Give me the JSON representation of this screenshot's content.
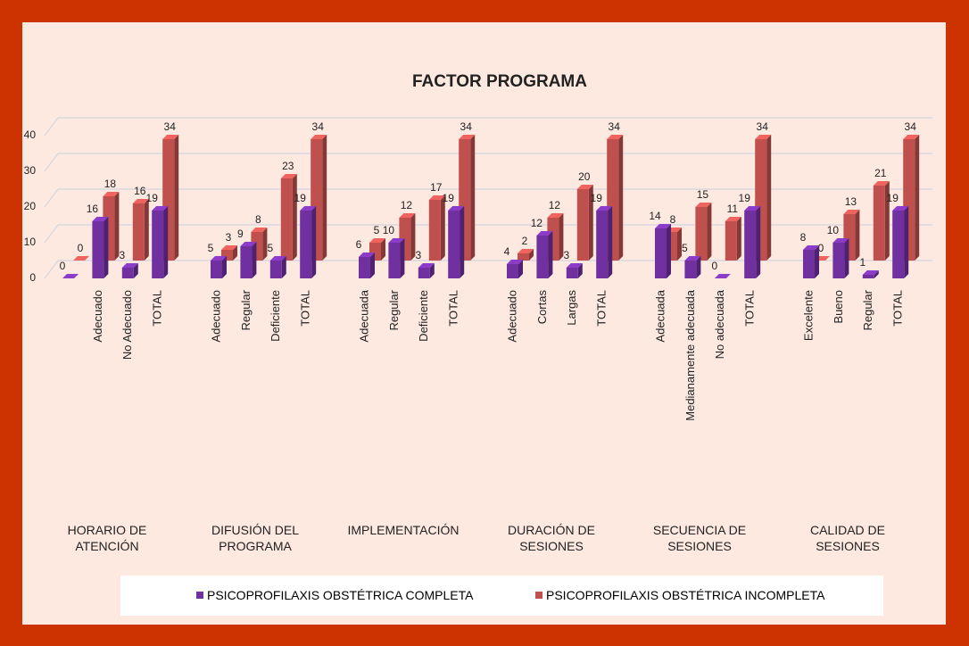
{
  "chart_data": {
    "type": "bar3d",
    "title": "FACTOR PROGRAMA",
    "categories": [
      null,
      "Adecuado",
      "No Adecuado",
      "TOTAL",
      "Adecuado",
      "Regular",
      "Deficiente",
      "TOTAL",
      "Adecuada",
      "Regular",
      "Deficiente",
      "TOTAL",
      "Adecuado",
      "Cortas",
      "Largas",
      "TOTAL",
      "Adecuada",
      "Medianamente adecuada",
      "No adecuada",
      "TOTAL",
      "Excelente",
      "Bueno",
      "Regular",
      "TOTAL"
    ],
    "groups": [
      "HORARIO DE ATENCIÓN",
      "DIFUSIÓN DEL PROGRAMA",
      "IMPLEMENTACIÓN",
      "DURACIÓN DE SESIONES",
      "SECUENCIA DE SESIONES",
      "CALIDAD DE SESIONES"
    ],
    "series": [
      {
        "name": "PSICOPROFILAXIS OBSTÉTRICA COMPLETA",
        "color": "#7030a0",
        "values": [
          0,
          16,
          3,
          19,
          5,
          9,
          5,
          19,
          6,
          10,
          3,
          19,
          4,
          12,
          3,
          19,
          14,
          5,
          0,
          19,
          8,
          10,
          1,
          19
        ]
      },
      {
        "name": "PSICOPROFILAXIS OBSTÉTRICA INCOMPLETA",
        "color": "#c0504d",
        "values": [
          0,
          18,
          16,
          34,
          3,
          8,
          23,
          34,
          5,
          12,
          17,
          34,
          2,
          12,
          20,
          34,
          8,
          15,
          11,
          34,
          0,
          13,
          21,
          34
        ]
      }
    ],
    "ylim": [
      0,
      40
    ],
    "yticks": [
      0,
      10,
      20,
      30,
      40
    ],
    "grid": true,
    "legend": "bottom"
  }
}
